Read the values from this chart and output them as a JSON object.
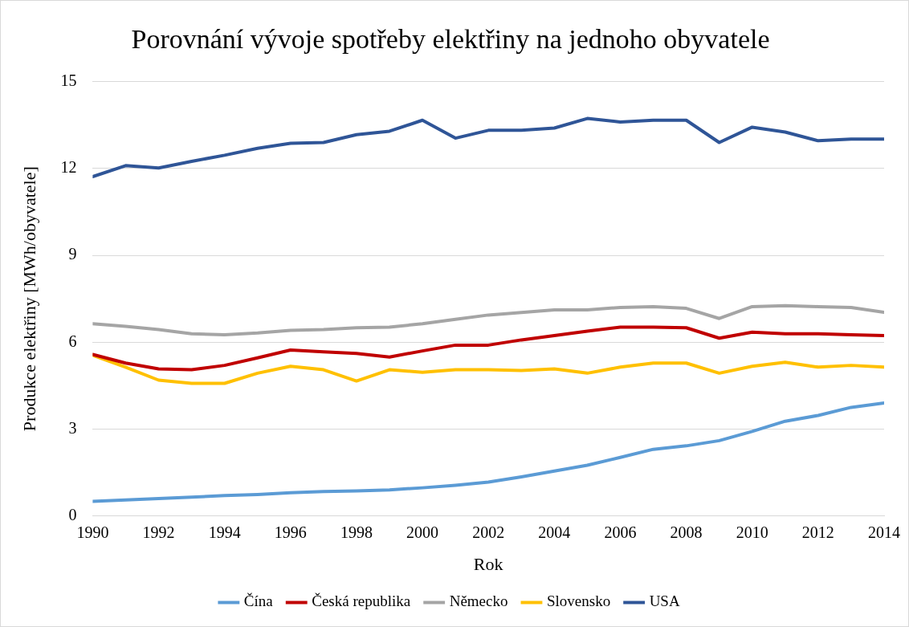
{
  "chart_data": {
    "type": "line",
    "title": "Porovnání vývoje spotřeby elektřiny na jednoho obyvatele",
    "xlabel": "Rok",
    "ylabel": "Produkce elektřiny [MWh/obyvatele]",
    "x": [
      1990,
      1991,
      1992,
      1993,
      1994,
      1995,
      1996,
      1997,
      1998,
      1999,
      2000,
      2001,
      2002,
      2003,
      2004,
      2005,
      2006,
      2007,
      2008,
      2009,
      2010,
      2011,
      2012,
      2013,
      2014
    ],
    "series": [
      {
        "name": "Čína",
        "color": "#5b9bd5",
        "values": [
          0.5,
          0.55,
          0.6,
          0.65,
          0.7,
          0.74,
          0.8,
          0.84,
          0.86,
          0.9,
          0.97,
          1.06,
          1.17,
          1.35,
          1.55,
          1.75,
          2.02,
          2.3,
          2.42,
          2.6,
          2.92,
          3.27,
          3.47,
          3.75,
          3.9
        ]
      },
      {
        "name": "Česká republika",
        "color": "#c00000",
        "values": [
          5.58,
          5.28,
          5.08,
          5.05,
          5.2,
          5.46,
          5.73,
          5.67,
          5.61,
          5.49,
          5.7,
          5.9,
          5.9,
          6.08,
          6.23,
          6.38,
          6.52,
          6.52,
          6.5,
          6.14,
          6.35,
          6.29,
          6.29,
          6.26,
          6.23
        ]
      },
      {
        "name": "Německo",
        "color": "#a5a5a5",
        "values": [
          6.64,
          6.55,
          6.44,
          6.29,
          6.26,
          6.32,
          6.41,
          6.44,
          6.5,
          6.52,
          6.64,
          6.79,
          6.94,
          7.03,
          7.12,
          7.12,
          7.2,
          7.23,
          7.17,
          6.82,
          7.23,
          7.26,
          7.23,
          7.2,
          7.03
        ]
      },
      {
        "name": "Slovensko",
        "color": "#ffc000",
        "values": [
          5.55,
          5.14,
          4.69,
          4.58,
          4.58,
          4.93,
          5.17,
          5.05,
          4.66,
          5.05,
          4.96,
          5.05,
          5.05,
          5.02,
          5.08,
          4.93,
          5.14,
          5.28,
          5.28,
          4.93,
          5.17,
          5.31,
          5.14,
          5.2,
          5.14
        ]
      },
      {
        "name": "USA",
        "color": "#2f5597",
        "values": [
          11.72,
          12.1,
          12.02,
          12.25,
          12.46,
          12.7,
          12.87,
          12.9,
          13.17,
          13.29,
          13.67,
          13.05,
          13.32,
          13.32,
          13.4,
          13.73,
          13.61,
          13.67,
          13.67,
          12.9,
          13.43,
          13.26,
          12.96,
          13.02,
          13.02
        ]
      }
    ],
    "xlim": [
      1990,
      2014
    ],
    "xticks": [
      1990,
      1992,
      1994,
      1996,
      1998,
      2000,
      2002,
      2004,
      2006,
      2008,
      2010,
      2012,
      2014
    ],
    "ylim": [
      0,
      15
    ],
    "yticks": [
      0,
      3,
      6,
      9,
      12,
      15
    ],
    "grid": "y",
    "legend": "bottom",
    "marker": "none",
    "line_style": "solid"
  }
}
